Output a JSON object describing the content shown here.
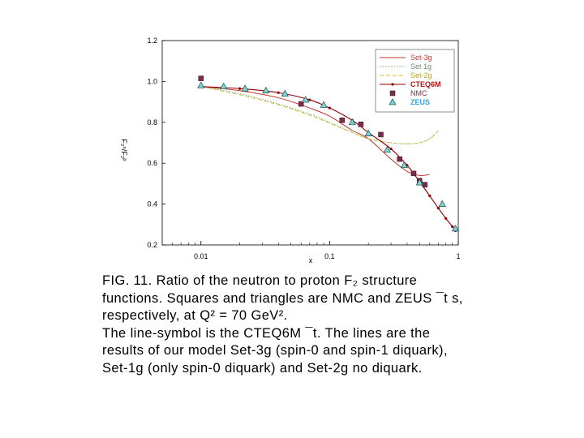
{
  "chart_data": {
    "type": "line",
    "xscale": "log",
    "xlim": [
      0.005,
      1
    ],
    "ylim": [
      0.2,
      1.2
    ],
    "x_ticks": [
      "0.01",
      "0.1",
      "1"
    ],
    "y_ticks": [
      "0.2",
      "0.4",
      "0.6",
      "0.8",
      "1.0",
      "1.2"
    ],
    "xlabel": "x",
    "ylabel": "F₂ⁿ/F₂ᵖ",
    "legend_position": "top-right",
    "grid": false,
    "series": [
      {
        "name": "Set-3g",
        "kind": "line",
        "color": "#c0392b",
        "dash": "",
        "x": [
          0.01,
          0.02,
          0.04,
          0.07,
          0.1,
          0.15,
          0.2,
          0.3,
          0.4,
          0.5,
          0.6
        ],
        "y": [
          0.975,
          0.955,
          0.92,
          0.87,
          0.83,
          0.76,
          0.72,
          0.62,
          0.56,
          0.54,
          0.545
        ]
      },
      {
        "name": "Set 1g",
        "kind": "line",
        "color": "#7aa37a",
        "dash": "1.5,2",
        "x": [
          0.01,
          0.02,
          0.04,
          0.07,
          0.1,
          0.15,
          0.2,
          0.3,
          0.4,
          0.5,
          0.6,
          0.7
        ],
        "y": [
          0.975,
          0.94,
          0.89,
          0.84,
          0.8,
          0.75,
          0.72,
          0.7,
          0.695,
          0.7,
          0.72,
          0.76
        ]
      },
      {
        "name": "Set-2g",
        "kind": "line",
        "color": "#d4c23a",
        "dash": "5,3",
        "x": [
          0.01,
          0.02,
          0.04,
          0.07,
          0.1,
          0.15,
          0.2,
          0.3,
          0.4,
          0.5,
          0.6,
          0.7
        ],
        "y": [
          0.975,
          0.935,
          0.885,
          0.835,
          0.795,
          0.75,
          0.72,
          0.7,
          0.695,
          0.7,
          0.72,
          0.76
        ]
      },
      {
        "name": "CTEQ6M",
        "kind": "linepoint",
        "color": "#8b0000",
        "dash": "",
        "x": [
          0.01,
          0.02,
          0.04,
          0.07,
          0.1,
          0.15,
          0.2,
          0.3,
          0.4,
          0.5,
          0.6,
          0.7,
          0.8,
          0.9,
          0.95
        ],
        "y": [
          0.975,
          0.965,
          0.945,
          0.91,
          0.87,
          0.81,
          0.75,
          0.67,
          0.59,
          0.51,
          0.44,
          0.38,
          0.33,
          0.29,
          0.27
        ]
      },
      {
        "name": "NMC",
        "kind": "square",
        "color": "#7b2c4a",
        "x": [
          0.01,
          0.06,
          0.125,
          0.175,
          0.25,
          0.35,
          0.45,
          0.55,
          0.5
        ],
        "y": [
          1.015,
          0.89,
          0.81,
          0.79,
          0.74,
          0.62,
          0.55,
          0.495,
          0.515
        ]
      },
      {
        "name": "ZEUS",
        "kind": "triangle",
        "color": "#7fd0d0",
        "x": [
          0.01,
          0.015,
          0.022,
          0.032,
          0.045,
          0.065,
          0.09,
          0.15,
          0.2,
          0.28,
          0.38,
          0.5,
          0.75,
          0.95
        ],
        "y": [
          0.98,
          0.975,
          0.965,
          0.955,
          0.94,
          0.91,
          0.885,
          0.8,
          0.745,
          0.665,
          0.59,
          0.505,
          0.4,
          0.28
        ]
      }
    ]
  },
  "caption": {
    "lines": [
      "FIG. 11. Ratio of the neutron to proton F₂ structure",
      "functions. Squares and triangles are NMC and ZEUS ¯t s,",
      "respectively, at Q² = 70 GeV².",
      "The line-symbol is the CTEQ6M ¯t. The lines are the",
      "results of our model Set-3g (spin-0 and spin-1 diquark),",
      "Set-1g (only spin-0 diquark) and Set-2g no diquark."
    ]
  }
}
